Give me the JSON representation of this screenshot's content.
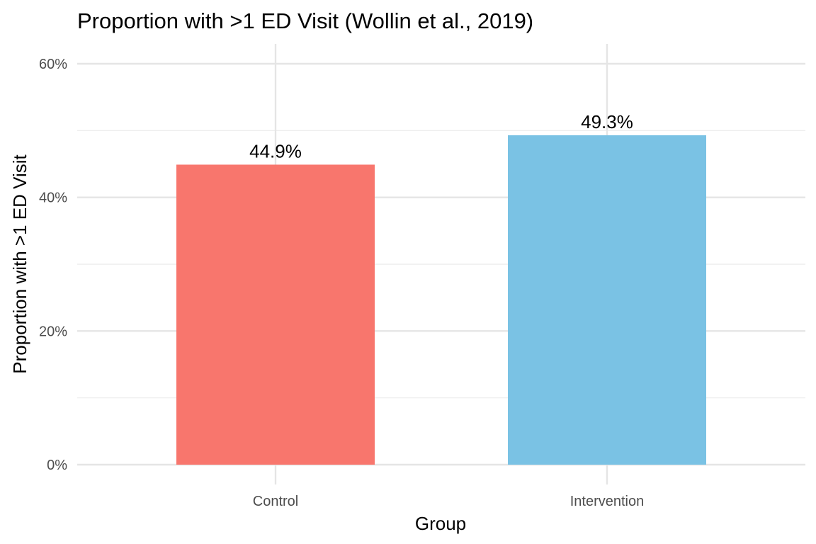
{
  "chart_data": {
    "type": "bar",
    "title": "Proportion with >1 ED Visit (Wollin et al., 2019)",
    "xlabel": "Group",
    "ylabel": "Proportion with >1 ED Visit",
    "categories": [
      "Control",
      "Intervention"
    ],
    "values": [
      0.449,
      0.493
    ],
    "data_labels": [
      "44.9%",
      "49.3%"
    ],
    "colors": [
      "#F8766D",
      "#7AC2E4"
    ],
    "ylim": [
      0,
      0.6
    ],
    "y_ticks": [
      0,
      0.2,
      0.4,
      0.6
    ],
    "y_tick_labels": [
      "0%",
      "20%",
      "40%",
      "60%"
    ],
    "grid": true,
    "legend": "none"
  }
}
